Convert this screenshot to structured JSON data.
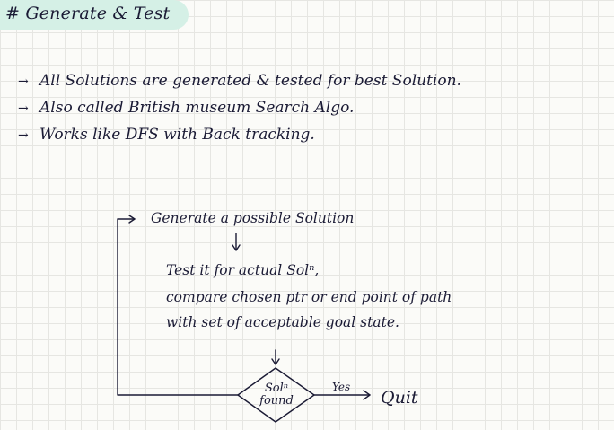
{
  "title": "# Generate & Test",
  "bullet_marker": "→",
  "bullets": [
    "All Solutions are generated & tested for best Solution.",
    "Also called British museum Search Algo.",
    "Works like DFS with Back tracking."
  ],
  "flow": {
    "step1": "Generate a possible Solution",
    "step2_lines": [
      "Test it for actual Solⁿ,",
      "compare chosen ptr or end point of path",
      "with set of acceptable goal state."
    ],
    "decision_lines": [
      "Solⁿ",
      "found"
    ],
    "yes_label": "Yes",
    "end_label": "Quit"
  },
  "colors": {
    "ink": "#1b1b35",
    "title_highlight": "#d5f0e6",
    "grid": "#e6e6e2"
  }
}
